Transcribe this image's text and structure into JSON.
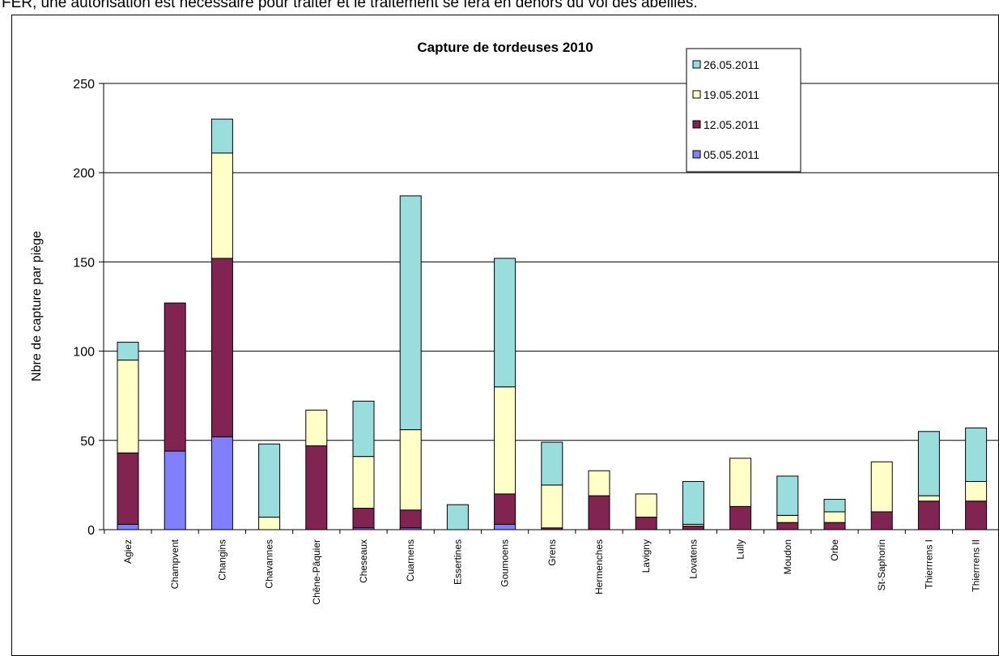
{
  "page": {
    "header_text": "FER, une autorisation est nécessaire pour traiter et le traitement se fera en dehors du vol des abeilles."
  },
  "colors": {
    "26.05.2011": "#99dddd",
    "19.05.2011": "#ffffc8",
    "12.05.2011": "#822452",
    "05.05.2011": "#8080ff"
  },
  "chart_data": {
    "type": "bar",
    "stacked": true,
    "title": "Capture de tordeuses 2010",
    "xlabel": "",
    "ylabel": "Nbre de capture par piège",
    "ylim": [
      0,
      250
    ],
    "yticks": [
      "0",
      "50",
      "100",
      "150",
      "200",
      "250"
    ],
    "grid": true,
    "legend_position": "top-right",
    "categories": [
      "Agiez",
      "Champvent",
      "Changins",
      "Chavannes",
      "Chêne-Pâquier",
      "Cheseaux",
      "Cuarnens",
      "Essertines",
      "Goumoens",
      "Grens",
      "Hermenches",
      "Lavigny",
      "Lovatens",
      "Lully",
      "Moudon",
      "Orbe",
      "St-Saphorin",
      "Thierrrens I",
      "Thierrrens II"
    ],
    "series": [
      {
        "name": "05.05.2011",
        "values": [
          3,
          44,
          52,
          0,
          0,
          1,
          1,
          0,
          3,
          0,
          0,
          0,
          0,
          0,
          0,
          0,
          0,
          0,
          0
        ]
      },
      {
        "name": "12.05.2011",
        "values": [
          40,
          83,
          100,
          0,
          47,
          11,
          10,
          0,
          17,
          1,
          19,
          7,
          2,
          13,
          4,
          4,
          10,
          16,
          16
        ]
      },
      {
        "name": "19.05.2011",
        "values": [
          52,
          0,
          59,
          7,
          20,
          29,
          45,
          0,
          60,
          24,
          14,
          13,
          1,
          27,
          4,
          6,
          28,
          3,
          11
        ]
      },
      {
        "name": "26.05.2011",
        "values": [
          10,
          0,
          19,
          41,
          0,
          31,
          131,
          14,
          72,
          24,
          0,
          0,
          24,
          0,
          22,
          7,
          0,
          36,
          30
        ]
      }
    ],
    "legend_order": [
      "26.05.2011",
      "19.05.2011",
      "12.05.2011",
      "05.05.2011"
    ]
  }
}
